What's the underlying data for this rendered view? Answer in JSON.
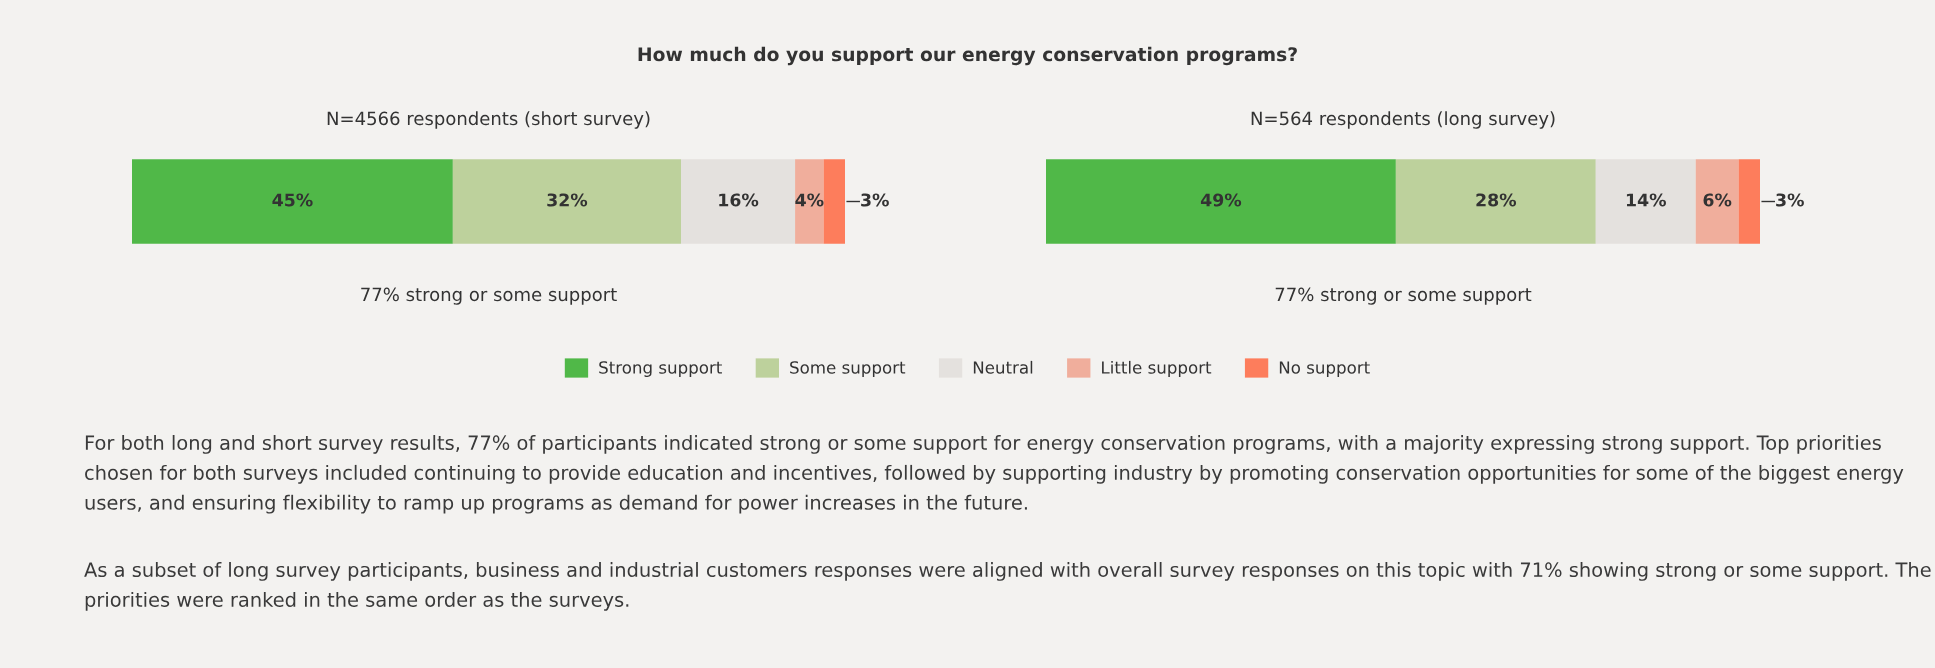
{
  "chart_data": [
    {
      "type": "bar",
      "orientation": "horizontal",
      "stacked": true,
      "title": "How much do you support our energy conservation programs?",
      "subtitle": "N=4566 respondents (short survey)",
      "categories": [
        null
      ],
      "xlim": [
        0,
        100
      ],
      "tick_labels": false,
      "legend": "bottom",
      "series": [
        {
          "name": "Strong support",
          "color": "#50b848",
          "values": [
            45
          ],
          "value_labels": [
            "45%"
          ]
        },
        {
          "name": "Some support",
          "color": "#bdd19c",
          "values": [
            32
          ],
          "value_labels": [
            "32%"
          ]
        },
        {
          "name": "Neutral",
          "color": "#e4e1de",
          "values": [
            16
          ],
          "value_labels": [
            "16%"
          ]
        },
        {
          "name": "Little support",
          "color": "#f0ae9c",
          "values": [
            4
          ],
          "value_labels": [
            "4%"
          ]
        },
        {
          "name": "No support",
          "color": "#fd7d5c",
          "values": [
            3
          ],
          "value_labels": [
            "3%"
          ]
        }
      ],
      "annotations": [
        "77% strong or some support",
        "For both long and short survey results, 77% of participants indicated strong or some support for energy conservation programs, with a majority expressing strong support. Top priorities chosen for both surveys included continuing to provide education and incentives, followed by supporting industry by promoting conservation opportunities for some of the biggest energy users, and ensuring flexibility to ramp up programs as demand for power increases in the future.",
        "As a subset of long survey participants, business and industrial customers responses were aligned with overall survey responses on this topic with 71% showing strong or some support. The priorities were ranked in the same order as the surveys."
      ]
    },
    {
      "type": "bar",
      "orientation": "horizontal",
      "stacked": true,
      "subtitle": "N=564 respondents (long survey)",
      "categories": [
        null
      ],
      "xlim": [
        0,
        100
      ],
      "tick_labels": false,
      "series": [
        {
          "color": "#50b848",
          "values": [
            49
          ],
          "value_labels": [
            "49%"
          ]
        },
        {
          "color": "#bdd19c",
          "values": [
            28
          ],
          "value_labels": [
            "28%"
          ]
        },
        {
          "color": "#e4e1de",
          "values": [
            14
          ],
          "value_labels": [
            "14%"
          ]
        },
        {
          "color": "#f0ae9c",
          "values": [
            6
          ],
          "value_labels": [
            "6%"
          ]
        },
        {
          "color": "#fd7d5c",
          "values": [
            3
          ],
          "value_labels": [
            "3%"
          ]
        }
      ],
      "annotations": [
        "77% strong or some support"
      ]
    }
  ]
}
